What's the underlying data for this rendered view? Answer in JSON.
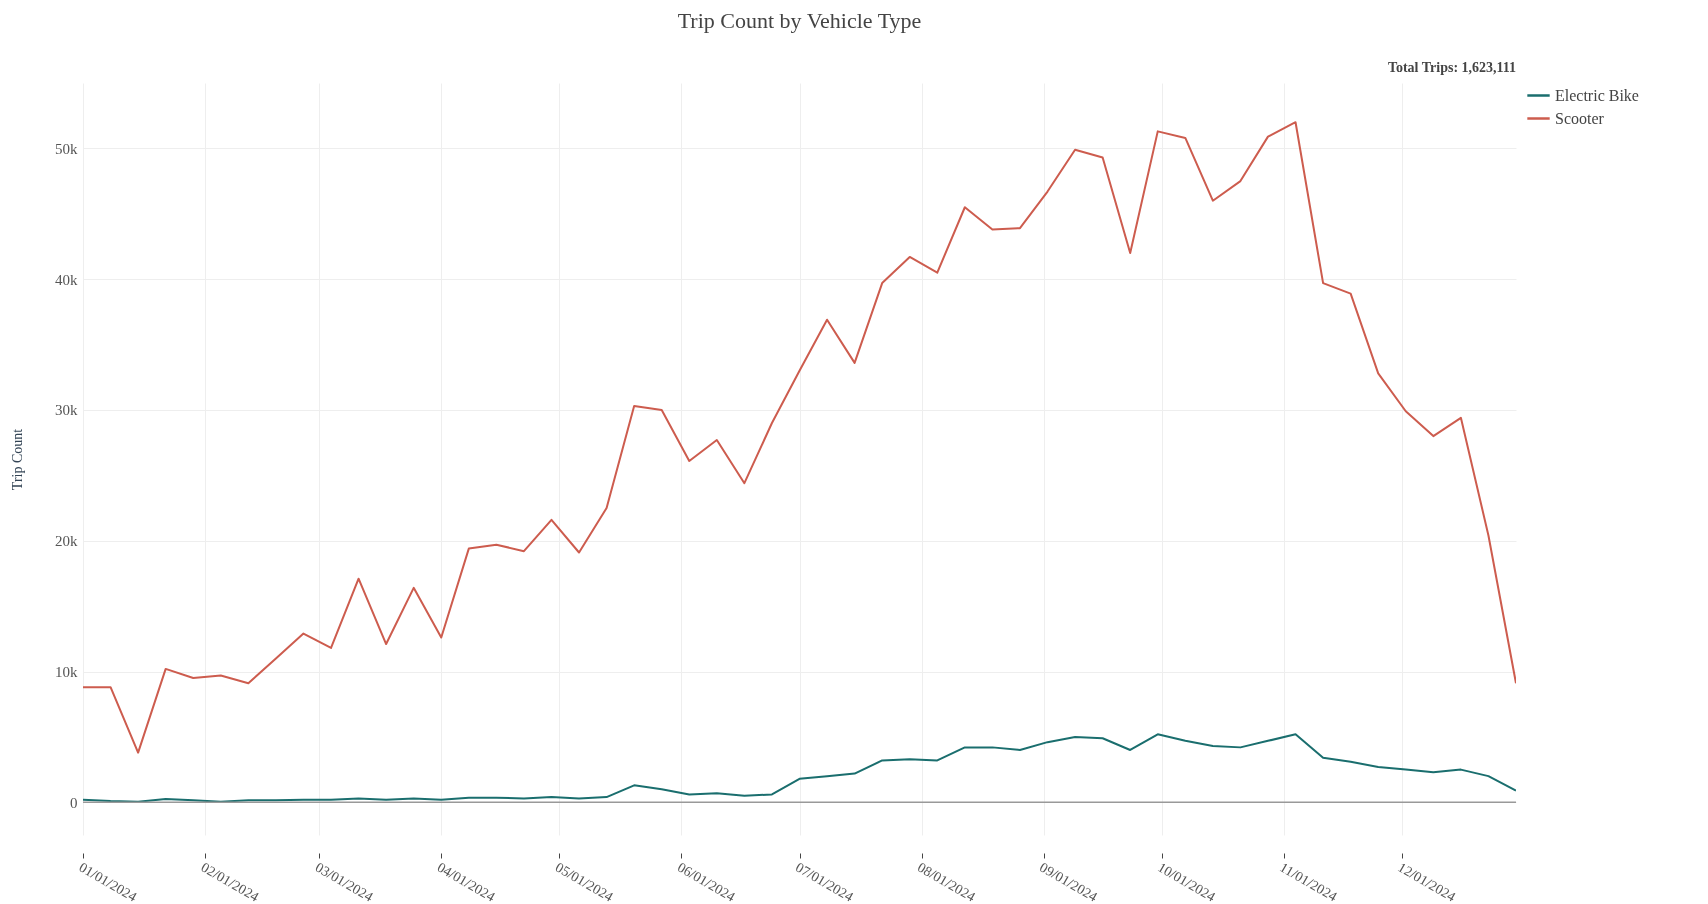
{
  "chart_data": {
    "type": "line",
    "title": "Trip Count by Vehicle Type",
    "ylabel": "Trip Count",
    "annotations": [
      "Total Trips: 1,623,111"
    ],
    "x": [
      "2024-01-01",
      "2024-01-08",
      "2024-01-15",
      "2024-01-22",
      "2024-01-29",
      "2024-02-05",
      "2024-02-12",
      "2024-02-19",
      "2024-02-26",
      "2024-03-04",
      "2024-03-11",
      "2024-03-18",
      "2024-03-25",
      "2024-04-01",
      "2024-04-08",
      "2024-04-15",
      "2024-04-22",
      "2024-04-29",
      "2024-05-06",
      "2024-05-13",
      "2024-05-20",
      "2024-05-27",
      "2024-06-03",
      "2024-06-10",
      "2024-06-17",
      "2024-06-24",
      "2024-07-01",
      "2024-07-08",
      "2024-07-15",
      "2024-07-22",
      "2024-07-29",
      "2024-08-05",
      "2024-08-12",
      "2024-08-19",
      "2024-08-26",
      "2024-09-02",
      "2024-09-09",
      "2024-09-16",
      "2024-09-23",
      "2024-09-30",
      "2024-10-07",
      "2024-10-14",
      "2024-10-21",
      "2024-10-28",
      "2024-11-04",
      "2024-11-11",
      "2024-11-18",
      "2024-11-25",
      "2024-12-02",
      "2024-12-09",
      "2024-12-16",
      "2024-12-23",
      "2024-12-30"
    ],
    "series": [
      {
        "name": "Electric Bike",
        "color": "#1a6e6e",
        "values": [
          200,
          100,
          50,
          250,
          150,
          50,
          150,
          150,
          200,
          200,
          300,
          200,
          300,
          200,
          350,
          350,
          300,
          400,
          300,
          400,
          1300,
          1000,
          600,
          700,
          500,
          600,
          1800,
          2000,
          2200,
          3200,
          3300,
          3200,
          4200,
          4200,
          4000,
          4600,
          5000,
          4900,
          4000,
          5200,
          4700,
          4300,
          4200,
          4700,
          5200,
          3400,
          3100,
          2700,
          2500,
          2300,
          2500,
          2000,
          900
        ]
      },
      {
        "name": "Scooter",
        "color": "#cd5c4e",
        "values": [
          8800,
          8800,
          3800,
          10200,
          9500,
          9700,
          9100,
          11000,
          12900,
          11800,
          17100,
          12100,
          16400,
          12600,
          19400,
          19700,
          19200,
          21600,
          19100,
          22500,
          30300,
          30000,
          26100,
          27700,
          24400,
          29000,
          33000,
          36900,
          33600,
          39700,
          41700,
          40500,
          45500,
          43800,
          43900,
          46700,
          49900,
          49300,
          42000,
          51300,
          50800,
          46000,
          47500,
          50900,
          52000,
          39700,
          38900,
          32800,
          29900,
          28000,
          29400,
          20400,
          9100
        ]
      }
    ],
    "xlim": [
      "2024-01-01",
      "2024-12-30"
    ],
    "xticks": [
      {
        "value": "2024-01-01",
        "label": "01/01/2024"
      },
      {
        "value": "2024-02-01",
        "label": "02/01/2024"
      },
      {
        "value": "2024-03-01",
        "label": "03/01/2024"
      },
      {
        "value": "2024-04-01",
        "label": "04/01/2024"
      },
      {
        "value": "2024-05-01",
        "label": "05/01/2024"
      },
      {
        "value": "2024-06-01",
        "label": "06/01/2024"
      },
      {
        "value": "2024-07-01",
        "label": "07/01/2024"
      },
      {
        "value": "2024-08-01",
        "label": "08/01/2024"
      },
      {
        "value": "2024-09-01",
        "label": "09/01/2024"
      },
      {
        "value": "2024-10-01",
        "label": "10/01/2024"
      },
      {
        "value": "2024-11-01",
        "label": "11/01/2024"
      },
      {
        "value": "2024-12-01",
        "label": "12/01/2024"
      }
    ],
    "ylim": [
      -2500,
      55000
    ],
    "yticks": [
      0,
      {
        "value": 10000,
        "label": "10k"
      },
      {
        "value": 20000,
        "label": "20k"
      },
      {
        "value": 30000,
        "label": "30k"
      },
      {
        "value": 40000,
        "label": "40k"
      },
      {
        "value": 50000,
        "label": "50k"
      }
    ],
    "ref_lines": [
      {
        "axis": "y",
        "value": 0,
        "color": "#999999"
      }
    ],
    "grid": true,
    "legend": "top right",
    "marker": "none",
    "line_style": "solid"
  }
}
